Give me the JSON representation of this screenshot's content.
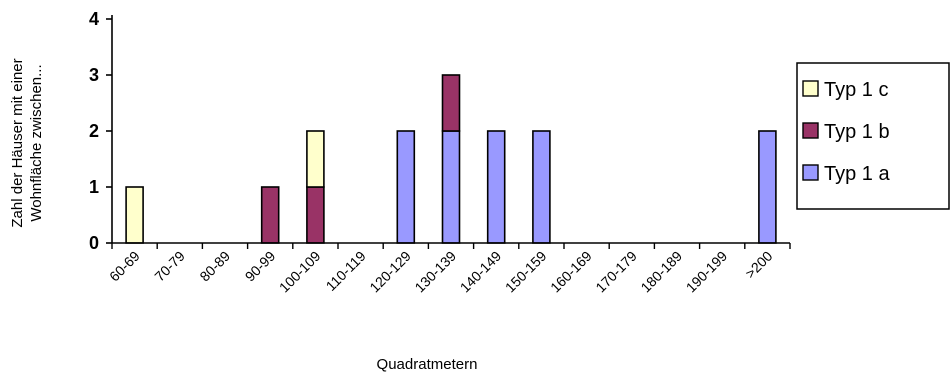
{
  "chart_data": {
    "type": "bar",
    "stacked": true,
    "categories": [
      "60-69",
      "70-79",
      "80-89",
      "90-99",
      "100-109",
      "110-119",
      "120-129",
      "130-139",
      "140-149",
      "150-159",
      "160-169",
      "170-179",
      "180-189",
      "190-199",
      ">200"
    ],
    "series": [
      {
        "name": "Typ 1 a",
        "color": "#9999ff",
        "values": [
          0,
          0,
          0,
          0,
          0,
          0,
          2,
          2,
          2,
          2,
          0,
          0,
          0,
          0,
          2
        ]
      },
      {
        "name": "Typ 1 b",
        "color": "#993366",
        "values": [
          0,
          0,
          0,
          1,
          1,
          0,
          0,
          1,
          0,
          0,
          0,
          0,
          0,
          0,
          0
        ]
      },
      {
        "name": "Typ 1 c",
        "color": "#ffffcc",
        "values": [
          1,
          0,
          0,
          0,
          1,
          0,
          0,
          0,
          0,
          0,
          0,
          0,
          0,
          0,
          0
        ]
      }
    ],
    "xlabel": "Quadratmetern",
    "ylabel": [
      "Zahl der Häuser mit einer",
      "Wohnfläche zwischen..."
    ],
    "ylim": [
      0,
      4
    ],
    "yticks": [
      "0",
      "1",
      "2",
      "3",
      "4"
    ],
    "grid": false,
    "legend": {
      "position": "right",
      "entries": [
        "Typ 1 c",
        "Typ 1 b",
        "Typ 1 a"
      ]
    }
  }
}
